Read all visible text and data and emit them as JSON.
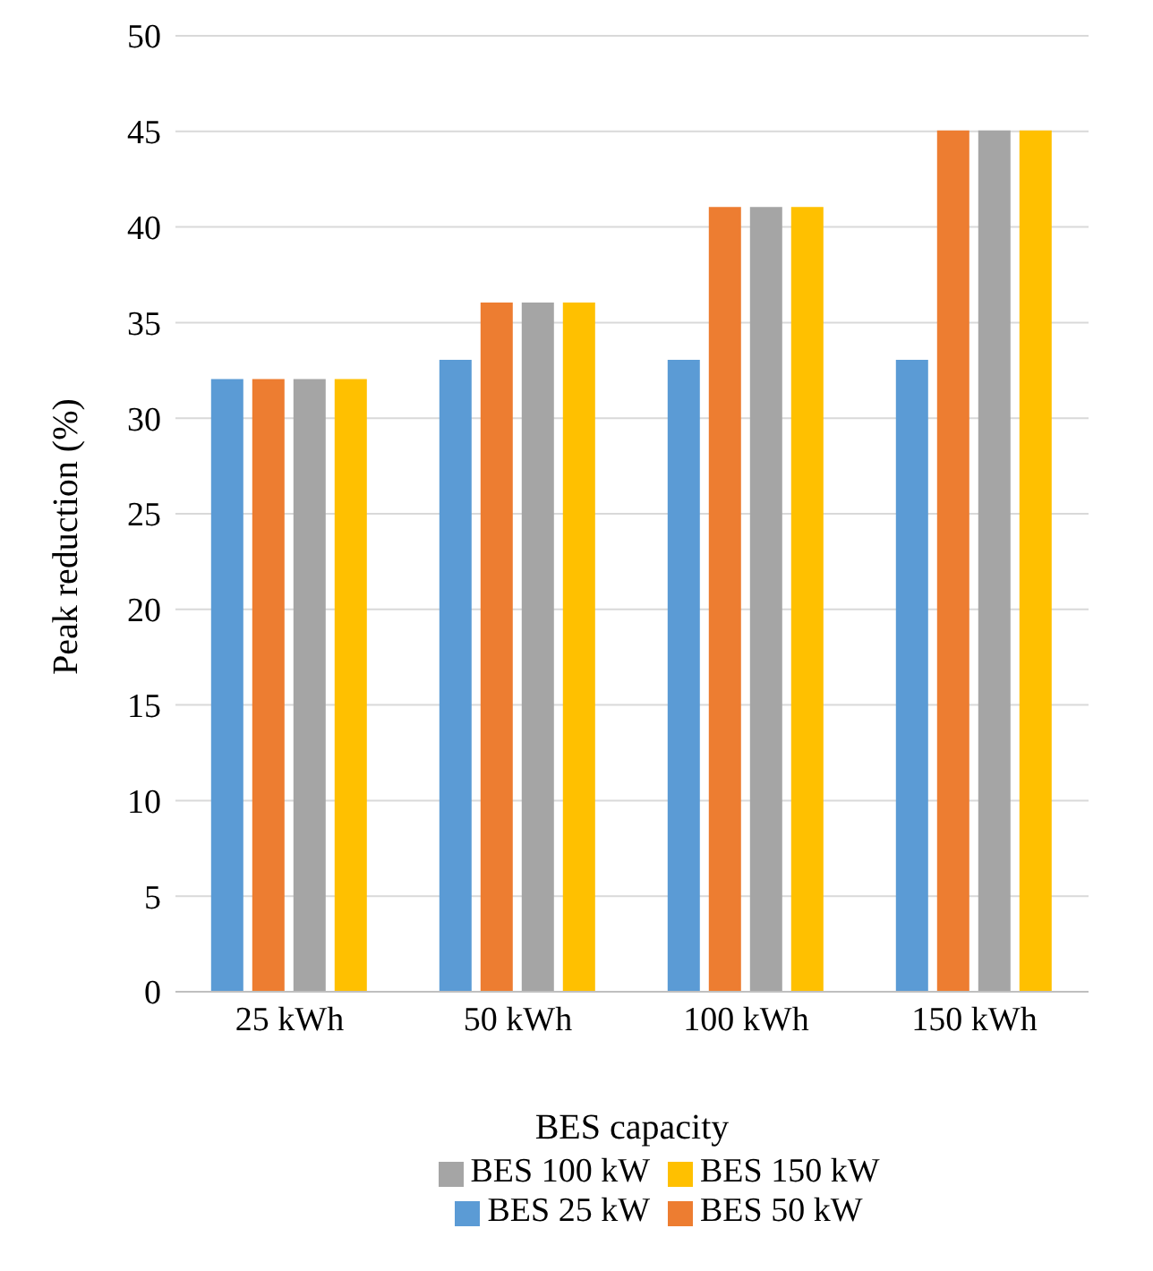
{
  "chart_data": {
    "type": "bar",
    "xlabel": "BES capacity",
    "ylabel": "Peak reduction (%)",
    "categories": [
      "25 kWh",
      "50 kWh",
      "100 kWh",
      "150 kWh"
    ],
    "series": [
      {
        "name": "BES 25 kW",
        "color": "#5b9bd5",
        "values": [
          32,
          33,
          33,
          33
        ]
      },
      {
        "name": "BES 50 kW",
        "color": "#ed7d31",
        "values": [
          32,
          36,
          41,
          45
        ]
      },
      {
        "name": "BES 100 kW",
        "color": "#a5a5a5",
        "values": [
          32,
          36,
          41,
          45
        ]
      },
      {
        "name": "BES 150 kW",
        "color": "#ffc000",
        "values": [
          32,
          36,
          41,
          45
        ]
      }
    ],
    "ylim": [
      0,
      50
    ],
    "yticks": [
      0,
      5,
      10,
      15,
      20,
      25,
      30,
      35,
      40,
      45,
      50
    ],
    "grid": "y",
    "legend": "bottom"
  }
}
